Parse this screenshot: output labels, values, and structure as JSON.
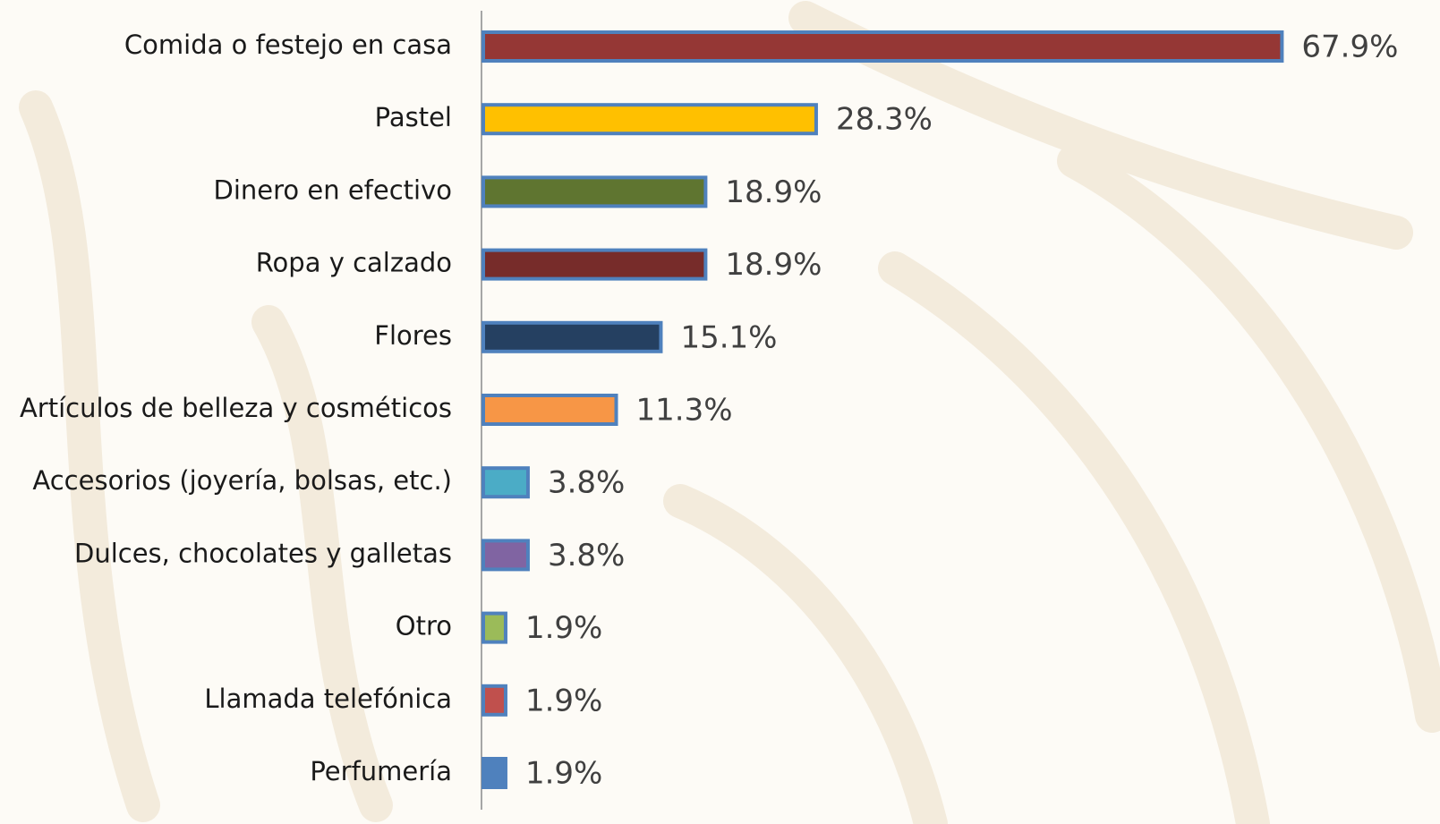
{
  "chart_data": {
    "type": "bar",
    "orientation": "horizontal",
    "categories": [
      "Comida o festejo en casa",
      "Pastel",
      "Dinero en efectivo",
      "Ropa y calzado",
      "Flores",
      "Artículos de belleza y cosméticos",
      "Accesorios (joyería, bolsas, etc.)",
      "Dulces, chocolates y galletas",
      "Otro",
      "Llamada telefónica",
      "Perfumería"
    ],
    "values": [
      67.9,
      28.3,
      18.9,
      18.9,
      15.1,
      11.3,
      3.8,
      3.8,
      1.9,
      1.9,
      1.9
    ],
    "value_labels": [
      "67.9%",
      "28.3%",
      "18.9%",
      "18.9%",
      "15.1%",
      "11.3%",
      "3.8%",
      "3.8%",
      "1.9%",
      "1.9%",
      "1.9%"
    ],
    "colors": [
      "#953735",
      "#ffc000",
      "#5f7530",
      "#772c2a",
      "#254061",
      "#f79646",
      "#4bacc6",
      "#8064a2",
      "#9bbb59",
      "#c0504d",
      "#4f81bd"
    ],
    "edge_color": "#4f81bd",
    "xlim": [
      0,
      70
    ]
  }
}
